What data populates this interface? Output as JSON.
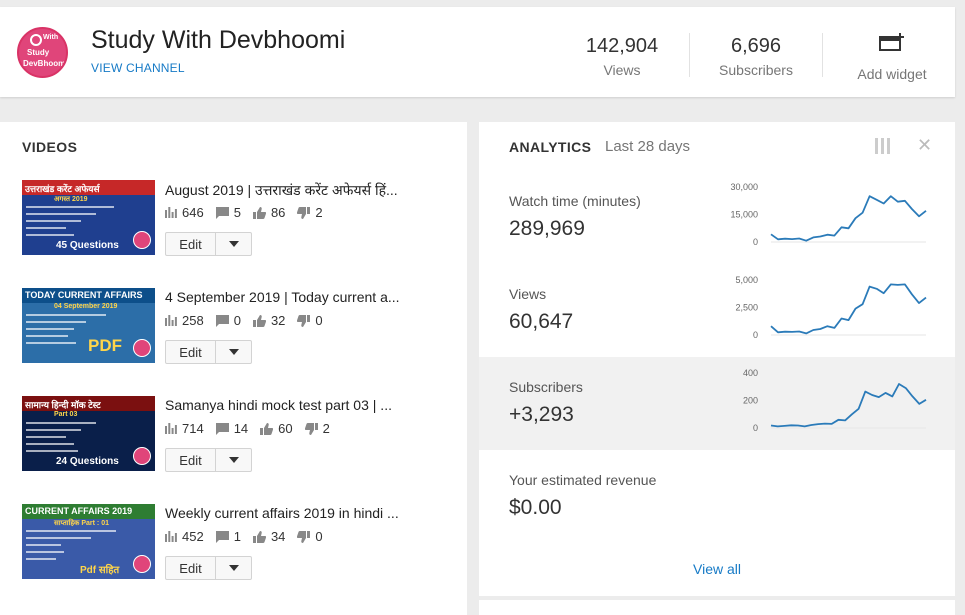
{
  "channel": {
    "name": "Study With Devbhoomi",
    "view_channel": "VIEW CHANNEL",
    "avatar_text": [
      "With",
      "Study",
      "DevBhoomi"
    ]
  },
  "stats": {
    "views": {
      "value": "142,904",
      "label": "Views"
    },
    "subscribers": {
      "value": "6,696",
      "label": "Subscribers"
    },
    "add_widget": "Add widget"
  },
  "videos": {
    "heading": "VIDEOS",
    "edit_label": "Edit",
    "items": [
      {
        "title": "August 2019 | उत्तराखंड करेंट अफेयर्स हिं...",
        "views": "646",
        "comments": "5",
        "likes": "86",
        "dislikes": "2",
        "thumb_caption": "उत्तराखंड करेंट अफेयर्स",
        "thumb_sub": "अगस्त 2019",
        "thumb_big": "45 Questions",
        "thumb_bg": "#1f3f8f",
        "thumb_top": "#c62828"
      },
      {
        "title": "4 September 2019 | Today current a...",
        "views": "258",
        "comments": "0",
        "likes": "32",
        "dislikes": "0",
        "thumb_caption": "TODAY CURRENT AFFAIRS",
        "thumb_sub": "04 September 2019",
        "thumb_big": "PDF",
        "thumb_bg": "#2c6ea8",
        "thumb_top": "#0d4f8a"
      },
      {
        "title": "Samanya hindi mock test part 03 | ...",
        "views": "714",
        "comments": "14",
        "likes": "60",
        "dislikes": "2",
        "thumb_caption": "सामान्य हिन्दी मॉक टेस्ट",
        "thumb_sub": "Part 03",
        "thumb_big": "24 Questions",
        "thumb_bg": "#0a1f4a",
        "thumb_top": "#7b1010"
      },
      {
        "title": "Weekly current affairs 2019 in hindi ...",
        "views": "452",
        "comments": "1",
        "likes": "34",
        "dislikes": "0",
        "thumb_caption": "CURRENT AFFAIRS 2019",
        "thumb_sub": "साप्ताहिक Part : 01",
        "thumb_big": "Pdf सहित",
        "thumb_bg": "#3a5aa8",
        "thumb_top": "#2e7d32"
      }
    ]
  },
  "analytics": {
    "heading": "ANALYTICS",
    "period": "Last 28 days",
    "view_all": "View all",
    "accent_color": "#2b7bb9",
    "metrics": [
      {
        "label": "Watch time (minutes)",
        "value": "289,969",
        "ticks": [
          "30,000",
          "15,000",
          "0"
        ],
        "ymax": 30000,
        "series": [
          4200,
          1500,
          1800,
          1600,
          1900,
          700,
          2500,
          3000,
          4000,
          3500,
          8000,
          7500,
          13000,
          16000,
          25000,
          23000,
          21000,
          25000,
          22000,
          22500,
          18000,
          14000,
          17000
        ]
      },
      {
        "label": "Views",
        "value": "60,647",
        "ticks": [
          "5,000",
          "2,500",
          "0"
        ],
        "ymax": 5000,
        "series": [
          800,
          250,
          300,
          280,
          320,
          150,
          450,
          550,
          800,
          650,
          1500,
          1350,
          2400,
          2800,
          4400,
          4200,
          3800,
          4600,
          4550,
          4600,
          3700,
          2900,
          3400
        ]
      },
      {
        "label": "Subscribers",
        "value": "+3,293",
        "ticks": [
          "400",
          "200",
          "0"
        ],
        "ymax": 400,
        "series": [
          18,
          12,
          15,
          20,
          18,
          12,
          22,
          28,
          32,
          30,
          60,
          55,
          100,
          140,
          265,
          240,
          225,
          255,
          230,
          320,
          290,
          230,
          175,
          205
        ]
      },
      {
        "label": "Your estimated revenue",
        "value": "$0.00"
      }
    ]
  }
}
